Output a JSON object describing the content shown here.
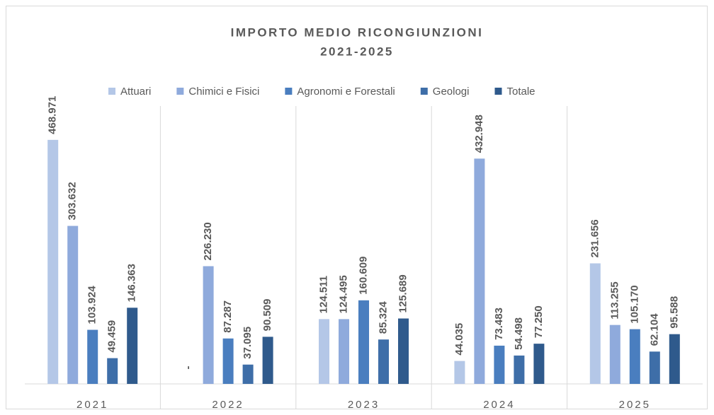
{
  "chart_data": {
    "type": "bar",
    "title": "IMPORTO MEDIO RICONGIUNZIONI",
    "subtitle": "2021-2025",
    "categories": [
      "2021",
      "2022",
      "2023",
      "2024",
      "2025"
    ],
    "series": [
      {
        "name": "Attuari",
        "color": "#b4c7e7",
        "values": [
          468971,
          null,
          124511,
          44035,
          231656
        ],
        "value_labels": [
          "468.971",
          "-",
          "124.511",
          "44.035",
          "231.656"
        ]
      },
      {
        "name": "Chimici e Fisici",
        "color": "#8faadc",
        "values": [
          303632,
          226230,
          124495,
          432948,
          113255
        ],
        "value_labels": [
          "303.632",
          "226.230",
          "124.495",
          "432.948",
          "113.255"
        ]
      },
      {
        "name": "Agronomi e Forestali",
        "color": "#4a7ebf",
        "values": [
          103924,
          87287,
          160609,
          73483,
          105170
        ],
        "value_labels": [
          "103.924",
          "87.287",
          "160.609",
          "73.483",
          "105.170"
        ]
      },
      {
        "name": "Geologi",
        "color": "#3e6ea8",
        "values": [
          49459,
          37095,
          85324,
          54498,
          62104
        ],
        "value_labels": [
          "49.459",
          "37.095",
          "85.324",
          "54.498",
          "62.104"
        ]
      },
      {
        "name": "Totale",
        "color": "#2f5a8c",
        "values": [
          146363,
          90509,
          125689,
          77250,
          95588
        ],
        "value_labels": [
          "146.363",
          "90.509",
          "125.689",
          "77.250",
          "95.588"
        ]
      }
    ],
    "ylim": [
      0,
      500000
    ]
  }
}
